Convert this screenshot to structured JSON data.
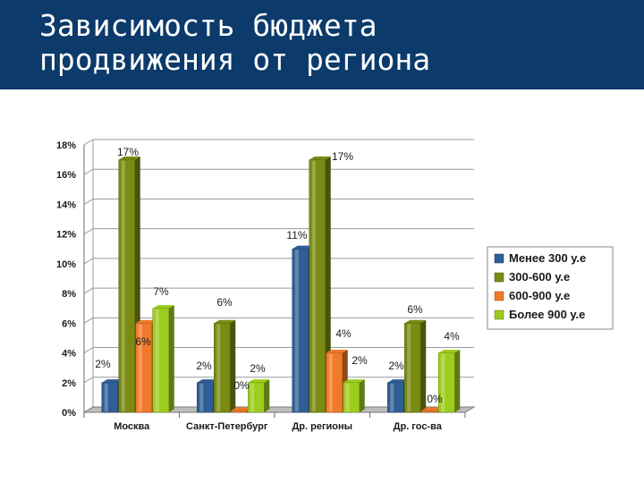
{
  "slide": {
    "title_line1": "Зависимость бюджета",
    "title_line2": "продвижения от региона",
    "header_color": "#0b3a6b"
  },
  "chart_data": {
    "type": "bar",
    "categories": [
      "Москва",
      "Санкт-Петербург",
      "Др. регионы",
      "Др. гос-ва"
    ],
    "series": [
      {
        "name": "Менее 300 у.е",
        "values": [
          2,
          2,
          11,
          2
        ],
        "labels": [
          "2%",
          "2%",
          "11%",
          "2%"
        ],
        "color": "#2f5f94"
      },
      {
        "name": "300-600 у.е",
        "values": [
          17,
          6,
          17,
          6
        ],
        "labels": [
          "17%",
          "6%",
          "17%",
          "6%"
        ],
        "color": "#7a8a12"
      },
      {
        "name": "600-900 у.е",
        "values": [
          6,
          0,
          4,
          0
        ],
        "labels": [
          "6%",
          "0%",
          "4%",
          "0%"
        ],
        "color": "#f07a2a"
      },
      {
        "name": "Более 900 у.е",
        "values": [
          7,
          2,
          2,
          4
        ],
        "labels": [
          "7%",
          "2%",
          "2%",
          "4%"
        ],
        "color": "#9ccc1e"
      }
    ],
    "y_ticks": [
      "0%",
      "2%",
      "4%",
      "6%",
      "8%",
      "10%",
      "12%",
      "14%",
      "16%",
      "18%"
    ],
    "ylim": [
      0,
      18
    ],
    "grid": true,
    "legend_position": "right"
  }
}
